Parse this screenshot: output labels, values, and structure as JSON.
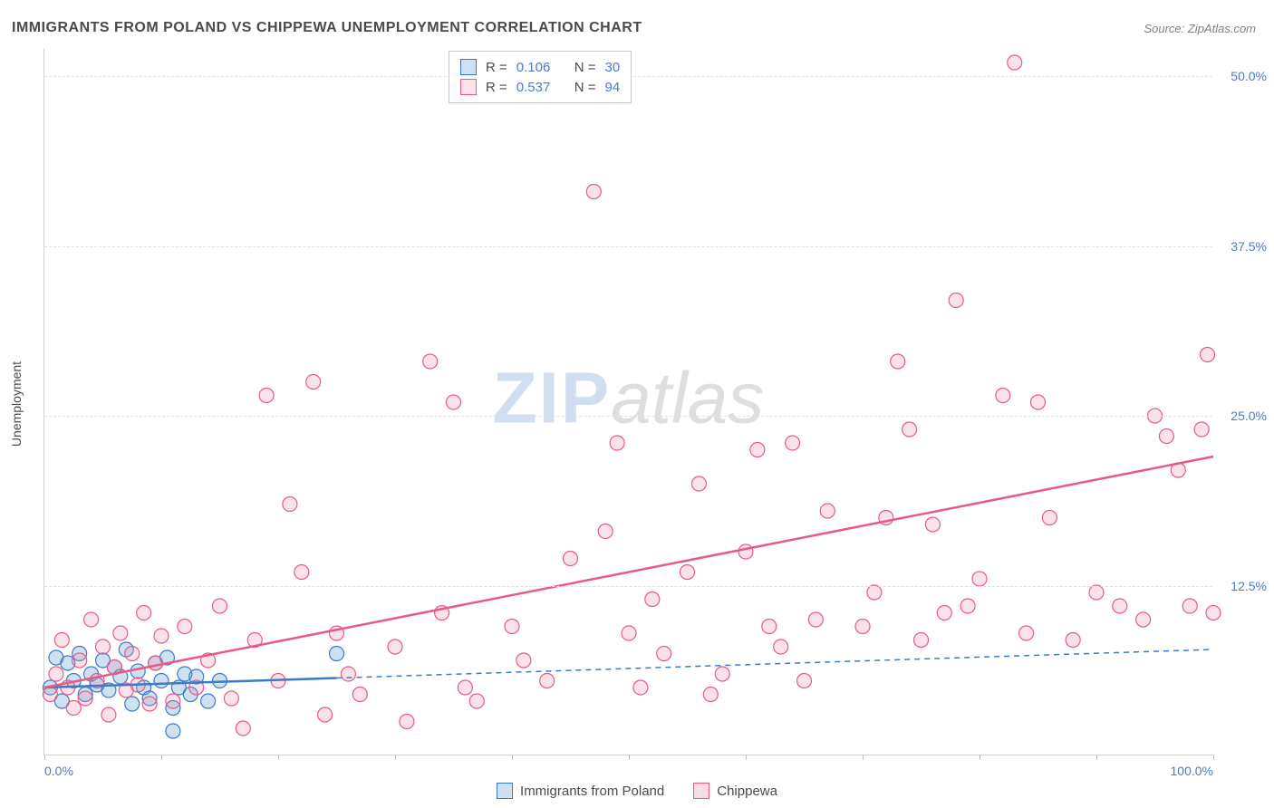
{
  "title": "IMMIGRANTS FROM POLAND VS CHIPPEWA UNEMPLOYMENT CORRELATION CHART",
  "source": "Source: ZipAtlas.com",
  "y_axis_label": "Unemployment",
  "watermark_zip": "ZIP",
  "watermark_atlas": "atlas",
  "chart": {
    "type": "scatter",
    "background_color": "#ffffff",
    "grid_color": "#e0e0e0",
    "axis_color": "#d0d0d0",
    "tick_label_color": "#4a7bc8",
    "axis_label_color": "#4a4a4a",
    "title_color": "#4a4a4a",
    "title_fontsize": 16,
    "label_fontsize": 14,
    "xlim": [
      0,
      100
    ],
    "ylim": [
      0,
      52
    ],
    "x_ticks": [
      0,
      10,
      20,
      30,
      40,
      50,
      60,
      70,
      80,
      90,
      100
    ],
    "x_tick_labels": {
      "0": "0.0%",
      "100": "100.0%"
    },
    "y_ticks": [
      12.5,
      25.0,
      37.5,
      50.0
    ],
    "y_tick_labels": [
      "12.5%",
      "25.0%",
      "37.5%",
      "50.0%"
    ],
    "marker_radius": 8,
    "marker_stroke_width": 1.2,
    "marker_fill_opacity": 0.25,
    "regression_line_width": 2.5,
    "dashed_extension": true
  },
  "series": [
    {
      "name": "Immigrants from Poland",
      "color": "#5a9bd5",
      "stroke": "#3a7bc8",
      "fill": "rgba(90,155,213,0.3)",
      "R": "0.106",
      "N": "30",
      "regression": {
        "x1": 0,
        "y1": 5.0,
        "x2": 100,
        "y2": 7.8,
        "solid_until_x": 25
      },
      "points": [
        [
          0.5,
          5.0
        ],
        [
          1.0,
          7.2
        ],
        [
          1.5,
          4.0
        ],
        [
          2.0,
          6.8
        ],
        [
          2.5,
          5.5
        ],
        [
          3.0,
          7.5
        ],
        [
          3.5,
          4.5
        ],
        [
          4.0,
          6.0
        ],
        [
          4.5,
          5.2
        ],
        [
          5.0,
          7.0
        ],
        [
          5.5,
          4.8
        ],
        [
          6.0,
          6.5
        ],
        [
          6.5,
          5.8
        ],
        [
          7.0,
          7.8
        ],
        [
          7.5,
          3.8
        ],
        [
          8.0,
          6.2
        ],
        [
          8.5,
          5.0
        ],
        [
          9.0,
          4.2
        ],
        [
          9.5,
          6.8
        ],
        [
          10.0,
          5.5
        ],
        [
          10.5,
          7.2
        ],
        [
          11.0,
          3.5
        ],
        [
          11.5,
          5.0
        ],
        [
          12.0,
          6.0
        ],
        [
          12.5,
          4.5
        ],
        [
          13.0,
          5.8
        ],
        [
          11.0,
          1.8
        ],
        [
          14.0,
          4.0
        ],
        [
          15.0,
          5.5
        ],
        [
          25.0,
          7.5
        ]
      ]
    },
    {
      "name": "Chippewa",
      "color": "#f08ca8",
      "stroke": "#e85a85",
      "fill": "rgba(240,140,168,0.25)",
      "R": "0.537",
      "N": "94",
      "regression": {
        "x1": 0,
        "y1": 5.0,
        "x2": 100,
        "y2": 22.0,
        "solid_until_x": 100
      },
      "points": [
        [
          0.5,
          4.5
        ],
        [
          1.0,
          6.0
        ],
        [
          1.5,
          8.5
        ],
        [
          2.0,
          5.0
        ],
        [
          2.5,
          3.5
        ],
        [
          3.0,
          7.0
        ],
        [
          3.5,
          4.2
        ],
        [
          4.0,
          10.0
        ],
        [
          4.5,
          5.5
        ],
        [
          5.0,
          8.0
        ],
        [
          5.5,
          3.0
        ],
        [
          6.0,
          6.5
        ],
        [
          6.5,
          9.0
        ],
        [
          7.0,
          4.8
        ],
        [
          7.5,
          7.5
        ],
        [
          8.0,
          5.2
        ],
        [
          8.5,
          10.5
        ],
        [
          9.0,
          3.8
        ],
        [
          9.5,
          6.8
        ],
        [
          10.0,
          8.8
        ],
        [
          11.0,
          4.0
        ],
        [
          12.0,
          9.5
        ],
        [
          13.0,
          5.0
        ],
        [
          14.0,
          7.0
        ],
        [
          15.0,
          11.0
        ],
        [
          16.0,
          4.2
        ],
        [
          17.0,
          2.0
        ],
        [
          18.0,
          8.5
        ],
        [
          19.0,
          26.5
        ],
        [
          20.0,
          5.5
        ],
        [
          21.0,
          18.5
        ],
        [
          22.0,
          13.5
        ],
        [
          23.0,
          27.5
        ],
        [
          24.0,
          3.0
        ],
        [
          25.0,
          9.0
        ],
        [
          26.0,
          6.0
        ],
        [
          27.0,
          4.5
        ],
        [
          30.0,
          8.0
        ],
        [
          31.0,
          2.5
        ],
        [
          33.0,
          29.0
        ],
        [
          34.0,
          10.5
        ],
        [
          35.0,
          26.0
        ],
        [
          36.0,
          5.0
        ],
        [
          37.0,
          4.0
        ],
        [
          40.0,
          9.5
        ],
        [
          41.0,
          7.0
        ],
        [
          43.0,
          5.5
        ],
        [
          45.0,
          14.5
        ],
        [
          47.0,
          41.5
        ],
        [
          48.0,
          16.5
        ],
        [
          49.0,
          23.0
        ],
        [
          50.0,
          9.0
        ],
        [
          51.0,
          5.0
        ],
        [
          52.0,
          11.5
        ],
        [
          53.0,
          7.5
        ],
        [
          55.0,
          13.5
        ],
        [
          56.0,
          20.0
        ],
        [
          57.0,
          4.5
        ],
        [
          58.0,
          6.0
        ],
        [
          60.0,
          15.0
        ],
        [
          61.0,
          22.5
        ],
        [
          62.0,
          9.5
        ],
        [
          63.0,
          8.0
        ],
        [
          64.0,
          23.0
        ],
        [
          65.0,
          5.5
        ],
        [
          66.0,
          10.0
        ],
        [
          67.0,
          18.0
        ],
        [
          70.0,
          9.5
        ],
        [
          71.0,
          12.0
        ],
        [
          72.0,
          17.5
        ],
        [
          73.0,
          29.0
        ],
        [
          74.0,
          24.0
        ],
        [
          75.0,
          8.5
        ],
        [
          76.0,
          17.0
        ],
        [
          77.0,
          10.5
        ],
        [
          78.0,
          33.5
        ],
        [
          79.0,
          11.0
        ],
        [
          80.0,
          13.0
        ],
        [
          82.0,
          26.5
        ],
        [
          83.0,
          51.0
        ],
        [
          84.0,
          9.0
        ],
        [
          85.0,
          26.0
        ],
        [
          86.0,
          17.5
        ],
        [
          88.0,
          8.5
        ],
        [
          90.0,
          12.0
        ],
        [
          92.0,
          11.0
        ],
        [
          94.0,
          10.0
        ],
        [
          95.0,
          25.0
        ],
        [
          96.0,
          23.5
        ],
        [
          97.0,
          21.0
        ],
        [
          98.0,
          11.0
        ],
        [
          99.0,
          24.0
        ],
        [
          99.5,
          29.5
        ],
        [
          100.0,
          10.5
        ]
      ]
    }
  ],
  "series_legend": [
    {
      "swatch_fill": "rgba(90,155,213,0.3)",
      "swatch_stroke": "#3a7bc8",
      "label": "Immigrants from Poland"
    },
    {
      "swatch_fill": "rgba(240,140,168,0.3)",
      "swatch_stroke": "#e85a85",
      "label": "Chippewa"
    }
  ],
  "stats_legend_labels": {
    "R": "R =",
    "N": "N ="
  }
}
